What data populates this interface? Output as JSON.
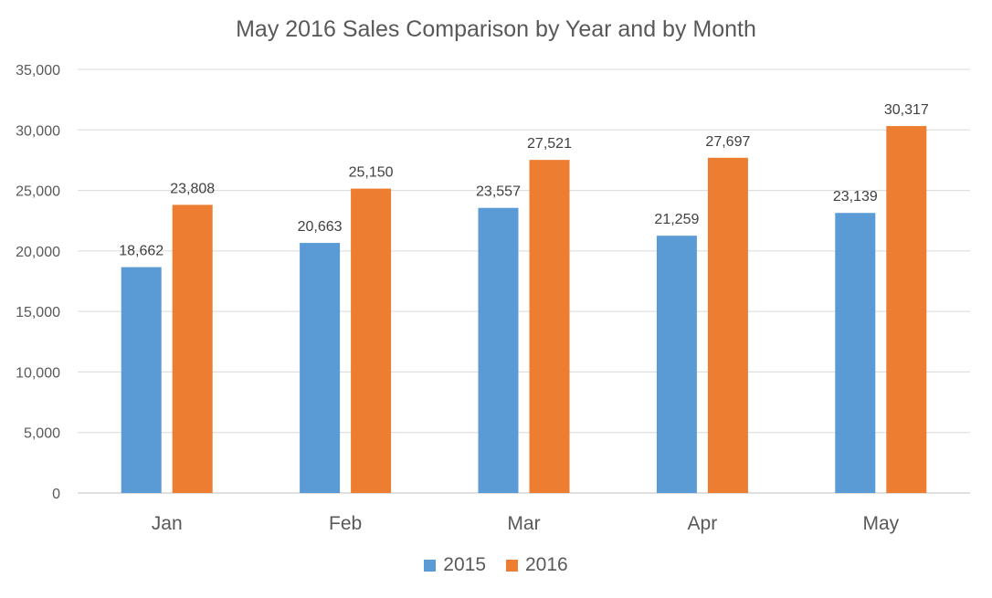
{
  "chart_data": {
    "type": "bar",
    "title": "May 2016 Sales Comparison by Year and by Month",
    "xlabel": "",
    "ylabel": "",
    "categories": [
      "Jan",
      "Feb",
      "Mar",
      "Apr",
      "May"
    ],
    "series": [
      {
        "name": "2015",
        "color": "#5b9bd5",
        "values": [
          18662,
          20663,
          23557,
          21259,
          23139
        ],
        "labels": [
          "18,662",
          "20,663",
          "23,557",
          "21,259",
          "23,139"
        ]
      },
      {
        "name": "2016",
        "color": "#ed7d31",
        "values": [
          23808,
          25150,
          27521,
          27697,
          30317
        ],
        "labels": [
          "23,808",
          "25,150",
          "27,521",
          "27,697",
          "30,317"
        ]
      }
    ],
    "ylim": [
      0,
      35000
    ],
    "yticks": [
      0,
      5000,
      10000,
      15000,
      20000,
      25000,
      30000,
      35000
    ],
    "ytick_labels": [
      "0",
      "5,000",
      "10,000",
      "15,000",
      "20,000",
      "25,000",
      "30,000",
      "35,000"
    ],
    "grid": true,
    "legend_position": "bottom"
  }
}
